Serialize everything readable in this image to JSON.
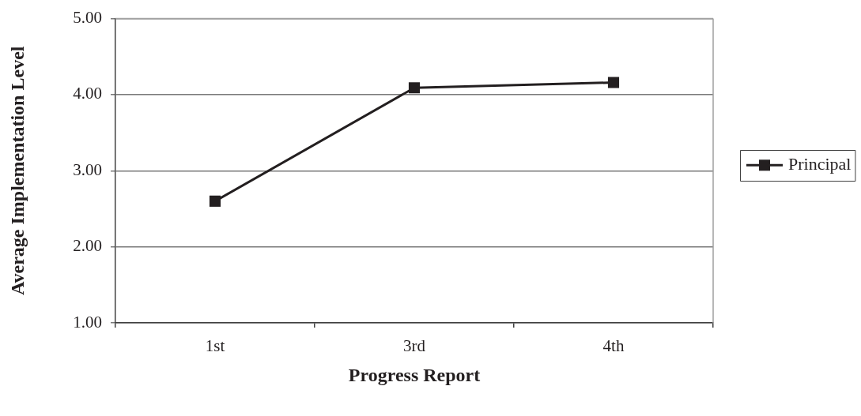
{
  "chart_data": {
    "type": "line",
    "xlabel": "Progress Report",
    "ylabel": "Average Implementation Level",
    "categories": [
      "1st",
      "3rd",
      "4th"
    ],
    "series": [
      {
        "name": "Principal",
        "color": "#231f20",
        "values": [
          2.6,
          4.09,
          4.16
        ]
      }
    ],
    "ylim": [
      1,
      5
    ],
    "yticks": [
      {
        "value": 1,
        "label": "1.00"
      },
      {
        "value": 2,
        "label": "2.00"
      },
      {
        "value": 3,
        "label": "3.00"
      },
      {
        "value": 4,
        "label": "4.00"
      },
      {
        "value": 5,
        "label": "5.00"
      }
    ],
    "grid": "y",
    "legend": "right",
    "marker": "square",
    "line_style": "solid"
  }
}
